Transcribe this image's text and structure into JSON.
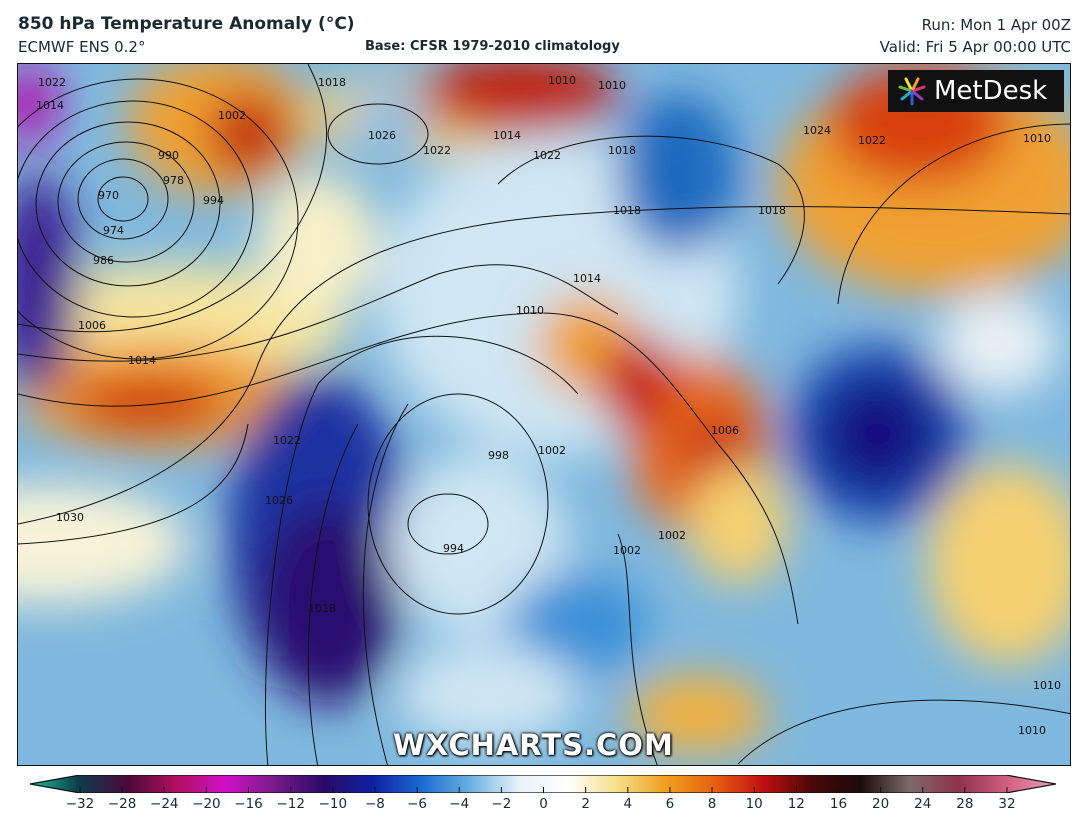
{
  "header": {
    "title": "850 hPa Temperature Anomaly (°C)",
    "model": "ECMWF ENS 0.2°",
    "base": "Base: CFSR 1979-2010 climatology",
    "run": "Run: Mon 1 Apr 00Z",
    "valid": "Valid: Fri 5 Apr 00:00 UTC"
  },
  "logo": {
    "text": "MetDesk"
  },
  "watermark": "WXCHARTS.COM",
  "colorbar": {
    "unit": "°C",
    "ticks": [
      "−32",
      "−28",
      "−24",
      "−20",
      "−16",
      "−12",
      "−10",
      "−8",
      "−6",
      "−4",
      "−2",
      "0",
      "2",
      "4",
      "6",
      "8",
      "10",
      "12",
      "16",
      "20",
      "24",
      "28",
      "32"
    ],
    "colors": [
      "#1fbf9a",
      "#0d3b4a",
      "#4a0a3a",
      "#b0105e",
      "#d010c8",
      "#7a1a8a",
      "#2a0a6a",
      "#1020a0",
      "#1a6ad0",
      "#6ab0e0",
      "#e8f2f8",
      "#ffffff",
      "#f5e08a",
      "#f0a020",
      "#e86010",
      "#c01010",
      "#4a0808",
      "#1a0a0a",
      "#7a6a6a",
      "#903050",
      "#d06080",
      "#f0a0b8"
    ]
  },
  "isobar_labels": [
    "1022",
    "1014",
    "1018",
    "1010",
    "1018",
    "1002",
    "990",
    "978",
    "970",
    "974",
    "986",
    "994",
    "1026",
    "1022",
    "1014",
    "1022",
    "1010",
    "1018",
    "1010",
    "1024",
    "1022",
    "1018",
    "1014",
    "1010",
    "1006",
    "1014",
    "1030",
    "1026",
    "1022",
    "1018",
    "994",
    "998",
    "1002",
    "1006",
    "1002",
    "1010",
    "1010",
    "1002"
  ]
}
